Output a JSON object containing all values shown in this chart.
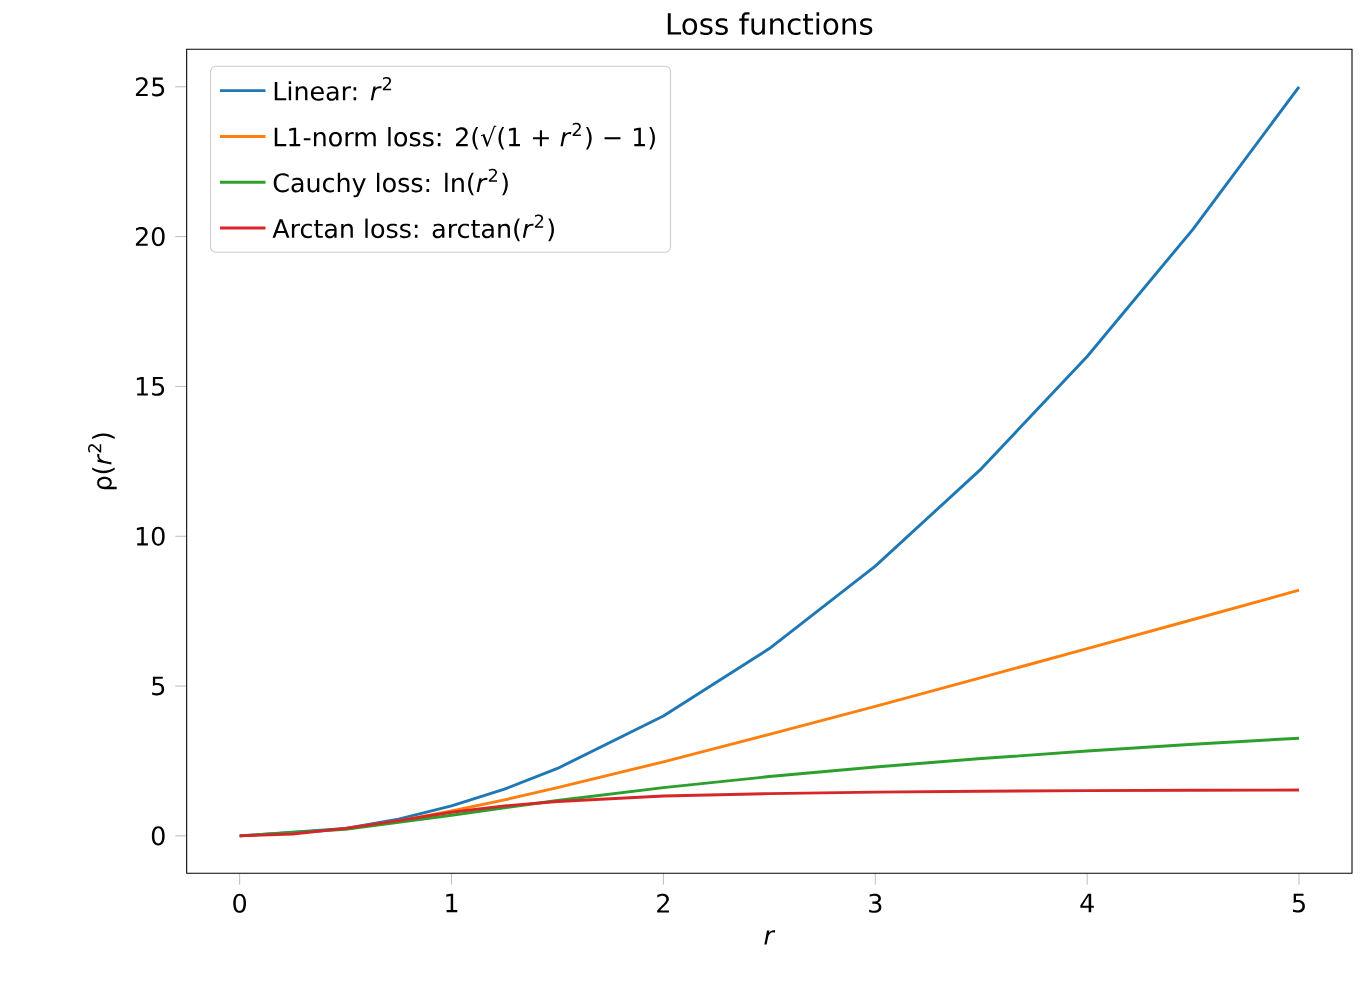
{
  "chart_data": {
    "type": "line",
    "title": "Loss functions",
    "xlabel": "*r*",
    "ylabel": "ρ(*r*$^{2}$)",
    "x": [
      0,
      0.25,
      0.5,
      0.75,
      1,
      1.25,
      1.5,
      2,
      2.5,
      3,
      3.5,
      4,
      4.5,
      5
    ],
    "series": [
      {
        "name": "Linear: *r*$^{2}$",
        "color": "#1f77b4",
        "values": [
          0,
          null,
          0.25,
          0.56,
          1,
          1.56,
          2.25,
          4,
          6.25,
          9,
          12.25,
          16,
          20.25,
          25
        ]
      },
      {
        "name": "L1-norm loss: 2(√(1 + *r*$^{2}$) − 1)",
        "color": "#ff7f0e",
        "values": [
          null,
          null,
          0.24,
          0.5,
          0.83,
          1.2,
          1.61,
          2.47,
          3.39,
          4.32,
          5.28,
          6.25,
          7.22,
          8.2
        ]
      },
      {
        "name": "Cauchy loss: ln(*r*$^{2}$)",
        "color": "#2ca02c",
        "values": [
          0,
          null,
          0.22,
          0.45,
          0.69,
          0.94,
          1.18,
          1.61,
          1.98,
          2.3,
          2.58,
          2.83,
          3.06,
          3.26
        ]
      },
      {
        "name": "Arctan loss: arctan(*r*$^{2}$)",
        "color": "#d62728",
        "values": [
          0,
          0.06,
          0.25,
          0.51,
          0.79,
          1,
          1.15,
          1.33,
          1.41,
          1.46,
          1.49,
          1.51,
          1.52,
          1.53
        ]
      }
    ],
    "xlim": [
      -0.25,
      5.25
    ],
    "ylim": [
      -1.25,
      26.25
    ],
    "xticks": [
      0,
      1,
      2,
      3,
      4,
      5
    ],
    "yticks": [
      0,
      5,
      10,
      15,
      20,
      25
    ],
    "legend": "top left",
    "marker": "none",
    "line_style": "solid",
    "grid": false
  }
}
